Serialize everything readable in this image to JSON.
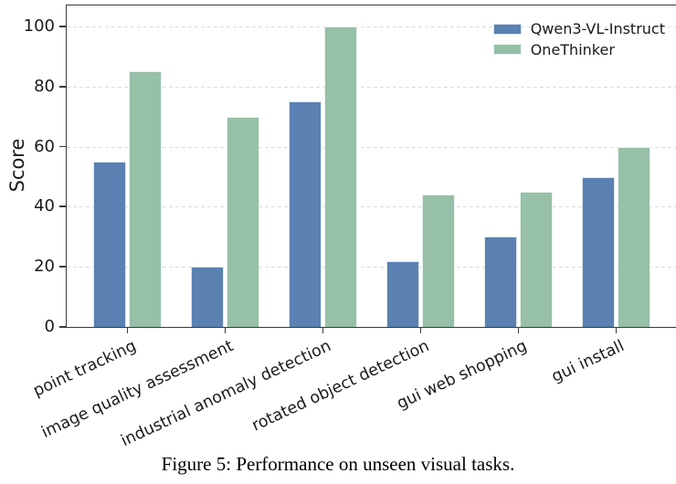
{
  "figure": {
    "caption": "Figure 5: Performance on unseen visual tasks."
  },
  "chart_data": {
    "type": "bar",
    "title": "",
    "xlabel": "",
    "ylabel": "Score",
    "categories": [
      "point tracking",
      "image quality assessment",
      "industrial anomaly detection",
      "rotated object detection",
      "gui web shopping",
      "gui install"
    ],
    "series": [
      {
        "name": "Qwen3-VL-Instruct",
        "color": "#5A81B1",
        "values": [
          55,
          20,
          75,
          22,
          30,
          50
        ]
      },
      {
        "name": "OneThinker",
        "color": "#96C0A8",
        "values": [
          85,
          70,
          100,
          44,
          45,
          60
        ]
      }
    ],
    "yticks": [
      0,
      20,
      40,
      60,
      80,
      100
    ],
    "ylim": [
      0,
      107
    ],
    "grid": "horizontal-dashed",
    "legend_position": "upper-right",
    "xtick_rotation_deg": 25
  },
  "colors": {
    "background": "#ffffff",
    "spine": "#3a3a3a",
    "grid": "#dcdcdc",
    "text": "#1a1a1a"
  }
}
